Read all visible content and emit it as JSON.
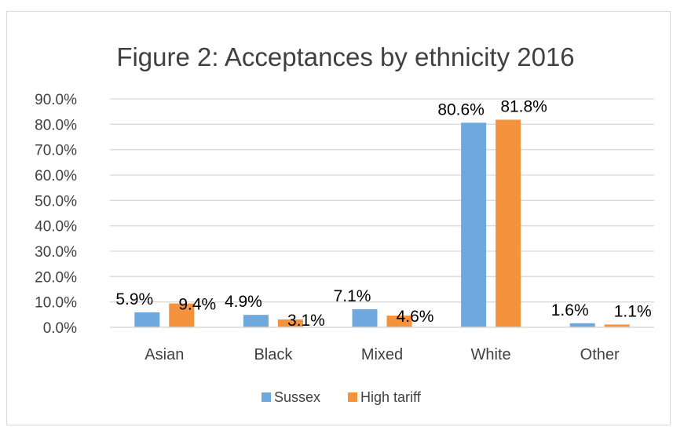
{
  "chart_data": {
    "type": "bar",
    "title": "Figure 2: Acceptances by ethnicity 2016",
    "categories": [
      "Asian",
      "Black",
      "Mixed",
      "White",
      "Other"
    ],
    "series": [
      {
        "name": "Sussex",
        "values": [
          5.9,
          4.9,
          7.1,
          80.6,
          1.6
        ],
        "labels": [
          "5.9%",
          "4.9%",
          "7.1%",
          "80.6%",
          "1.6%"
        ],
        "color": "#6fa8dc"
      },
      {
        "name": "High tariff",
        "values": [
          9.4,
          3.1,
          4.6,
          81.8,
          1.1
        ],
        "labels": [
          "9.4%",
          "3.1%",
          "4.6%",
          "81.8%",
          "1.1%"
        ],
        "color": "#f4923d"
      }
    ],
    "yticks": [
      "0.0%",
      "10.0%",
      "20.0%",
      "30.0%",
      "40.0%",
      "50.0%",
      "60.0%",
      "70.0%",
      "80.0%",
      "90.0%"
    ],
    "ylim": [
      0,
      90
    ],
    "grid": true,
    "legend": "bottom",
    "xlabel": "",
    "ylabel": ""
  }
}
